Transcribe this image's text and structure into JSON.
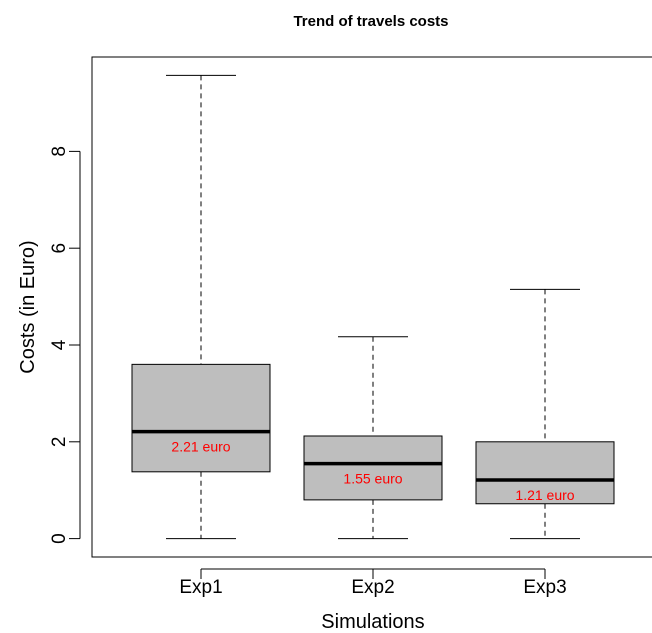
{
  "chart_data": {
    "type": "boxplot",
    "title": "Trend of travels costs",
    "xlabel": "Simulations",
    "ylabel": "Costs (in Euro)",
    "categories": [
      "Exp1",
      "Exp2",
      "Exp3"
    ],
    "yticks": [
      "0",
      "2",
      "4",
      "6",
      "8"
    ],
    "ylim": [
      -0.38,
      9.95
    ],
    "box_fill": "#bebebe",
    "label_color": "#ff0000",
    "boxes": [
      {
        "name": "Exp1",
        "min": 0.0,
        "q1": 1.38,
        "median": 2.21,
        "q3": 3.6,
        "max": 9.57,
        "label": "2.21 euro"
      },
      {
        "name": "Exp2",
        "min": 0.0,
        "q1": 0.8,
        "median": 1.55,
        "q3": 2.12,
        "max": 4.17,
        "label": "1.55 euro"
      },
      {
        "name": "Exp3",
        "min": 0.0,
        "q1": 0.72,
        "median": 1.21,
        "q3": 2.0,
        "max": 5.15,
        "label": "1.21 euro"
      }
    ]
  }
}
